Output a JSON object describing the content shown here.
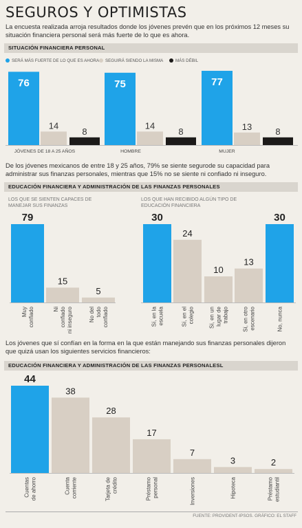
{
  "title": "SEGUROS Y OPTIMISTAS",
  "intro": "La encuesta realizada arroja resultados donde los jóvenes prevén que en los próximos 12 meses su situación financiera personal será más fuerte de lo que es ahora.",
  "section1_header": "SITUACIÓN FINANCIERA PERSONAL",
  "mid_text": "De los jóvenes mexicanos de entre 18 y 25 años, 79% se siente segurode su capacidad para administrar sus finanzas personales, mientras que 15% no se siente ni confiado ni inseguro.",
  "section2_header": "EDUCACIÓN FINANCIERA Y ADMINISTRACIÓN DE LAS FINANZAS PERSONALES",
  "sub2a": "LOS QUE SE SIENTEN CAPACES DE MANEJAR SUS FINANZAS",
  "sub2b": "LOS QUE HAN RECIBIDO ALGÚN TIPO DE EDUCACIÓN FINANCIERA",
  "lower_text": "Los jóvenes que sí confían en la forma en la que están manejando sus finanzas personales dijeron que quizá usan los siguientes servicios financieros:",
  "section3_header": "EDUCACIÓN FINANCIERA Y ADMINISTRACIÓN DE LAS FINANZAS PERSONALESL",
  "source": "FUENTE: PROVIDENT-IPSOS. GRÁFICO: EL STAFF",
  "colors": {
    "blue": "#1fa3e8",
    "beige": "#d8cfc4",
    "black": "#1c1a19"
  },
  "chart_data": [
    {
      "type": "bar",
      "title": "SITUACIÓN FINANCIERA PERSONAL",
      "categories": [
        "JÓVENES DE 18 A 25 AÑOS",
        "HOMBRE",
        "MUJER"
      ],
      "series": [
        {
          "name": "SERÁ MÁS FUERTE DE LO QUE ES AHORA",
          "values": [
            76,
            75,
            77
          ]
        },
        {
          "name": "SEGUIRÁ SIENDO LA MISMA",
          "values": [
            14,
            14,
            13
          ]
        },
        {
          "name": "MÁS DÉBIL",
          "values": [
            8,
            8,
            8
          ]
        }
      ]
    },
    {
      "type": "bar",
      "title": "LOS QUE SE SIENTEN CAPACES DE MANEJAR SUS FINANZAS",
      "categories": [
        "Muy confiado",
        "Ni confiado ni inseguro",
        "No del todo confiado"
      ],
      "values": [
        79,
        15,
        5
      ]
    },
    {
      "type": "bar",
      "title": "LOS QUE HAN RECIBIDO ALGÚN TIPO DE EDUCACIÓN FINANCIERA",
      "categories": [
        "Sí, en la escuela",
        "Sí, en el colegio",
        "Sí, en un lugar de trabajo",
        "Sí, en otro escenario",
        "No, nunca"
      ],
      "values": [
        30,
        24,
        10,
        13,
        30
      ]
    },
    {
      "type": "bar",
      "title": "EDUCACIÓN FINANCIERA Y ADMINISTRACIÓN DE LAS FINANZAS PERSONALESL",
      "categories": [
        "Cuentas de ahorro",
        "Cuenta corriente",
        "Tarjeta de crédito",
        "Préstamo personal",
        "Inversiones",
        "Hipoteca",
        "Préstamo estudiantil"
      ],
      "values": [
        44,
        38,
        28,
        17,
        7,
        3,
        2
      ]
    }
  ]
}
